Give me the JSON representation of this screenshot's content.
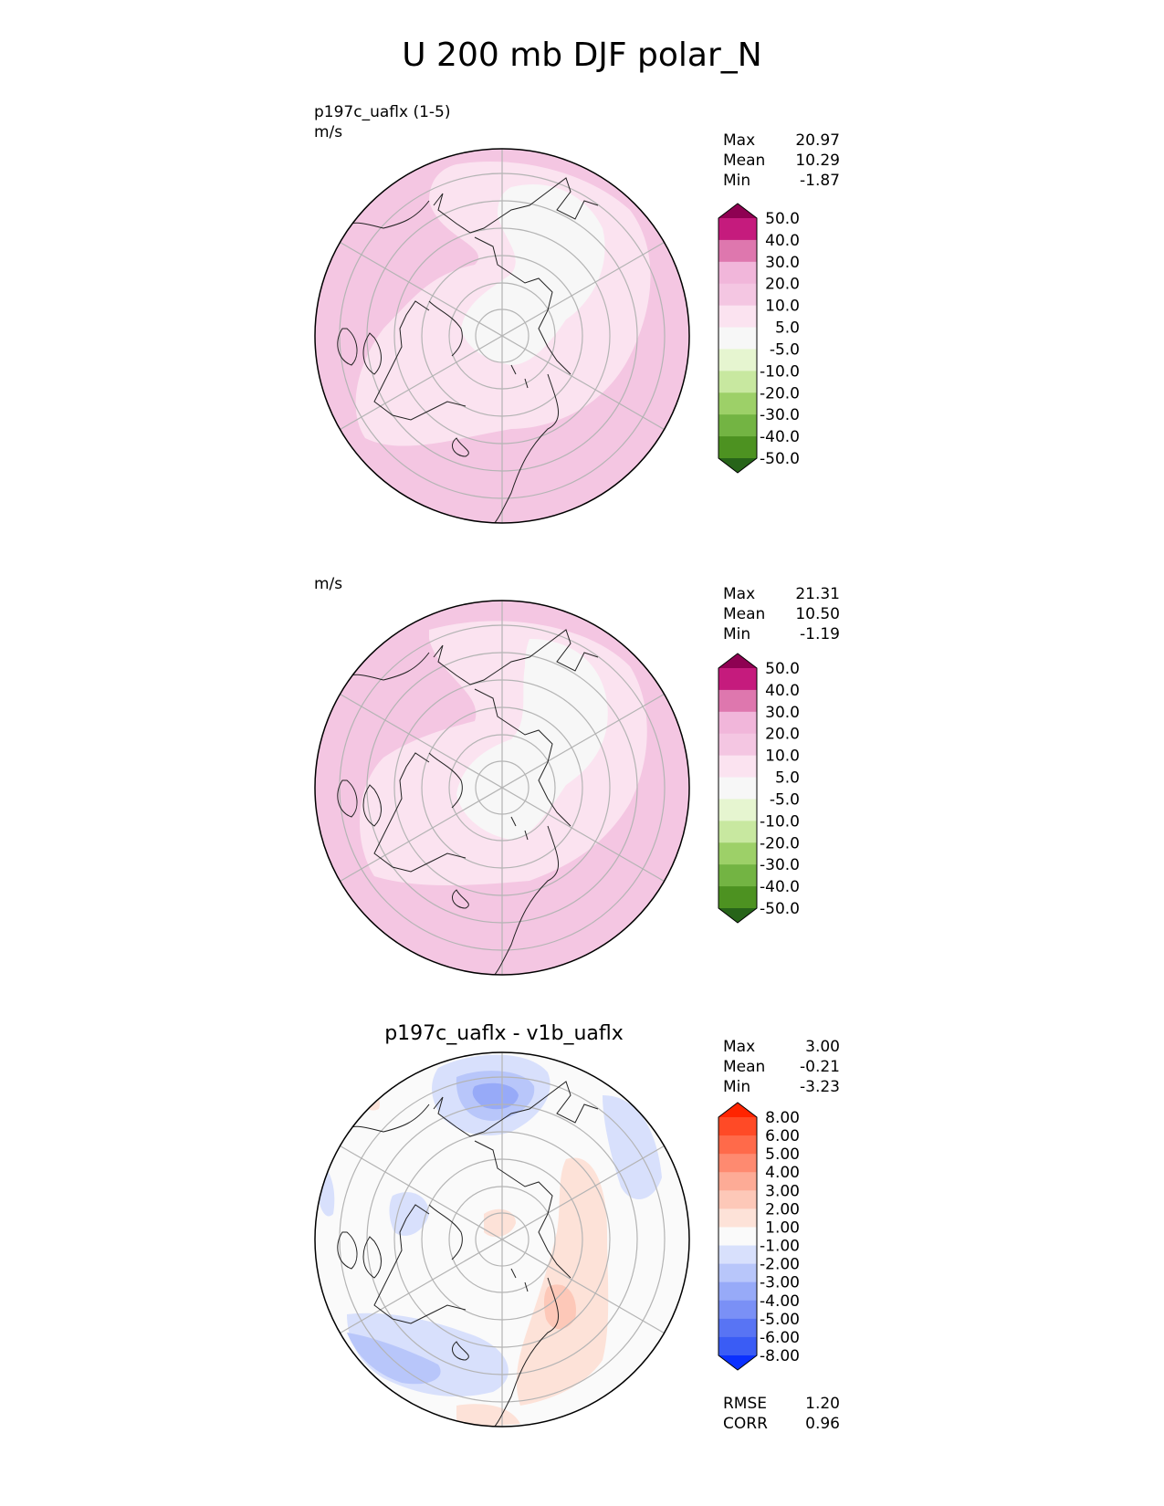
{
  "title": "U 200 mb DJF polar_N",
  "panels": [
    {
      "name": "test",
      "case_label": "p197c_uaflx (1-5)",
      "units": "m/s",
      "title": "",
      "stats": [
        {
          "label": "Max",
          "value": "20.97"
        },
        {
          "label": "Mean",
          "value": "10.29"
        },
        {
          "label": "Min",
          "value": "-1.87"
        }
      ],
      "colorbar": {
        "labels": [
          "50.0",
          "40.0",
          "30.0",
          "20.0",
          "10.0",
          "5.0",
          "-5.0",
          "-10.0",
          "-20.0",
          "-30.0",
          "-40.0",
          "-50.0"
        ],
        "colors": [
          "#8e0152",
          "#c51b7d",
          "#de77ae",
          "#f1b6da",
          "#f4c6e2",
          "#fbe3f0",
          "#f7f7f7",
          "#e6f5d0",
          "#c8e8a0",
          "#9dd068",
          "#73b443",
          "#4d9221",
          "#276419"
        ]
      },
      "extra_stats": []
    },
    {
      "name": "reference",
      "case_label": "",
      "units": "m/s",
      "title": "",
      "stats": [
        {
          "label": "Max",
          "value": "21.31"
        },
        {
          "label": "Mean",
          "value": "10.50"
        },
        {
          "label": "Min",
          "value": "-1.19"
        }
      ],
      "colorbar": {
        "labels": [
          "50.0",
          "40.0",
          "30.0",
          "20.0",
          "10.0",
          "5.0",
          "-5.0",
          "-10.0",
          "-20.0",
          "-30.0",
          "-40.0",
          "-50.0"
        ],
        "colors": [
          "#8e0152",
          "#c51b7d",
          "#de77ae",
          "#f1b6da",
          "#f4c6e2",
          "#fbe3f0",
          "#f7f7f7",
          "#e6f5d0",
          "#c8e8a0",
          "#9dd068",
          "#73b443",
          "#4d9221",
          "#276419"
        ]
      },
      "extra_stats": []
    },
    {
      "name": "difference",
      "case_label": "",
      "units": "",
      "title": "p197c_uaflx - v1b_uaflx",
      "stats": [
        {
          "label": "Max",
          "value": "3.00"
        },
        {
          "label": "Mean",
          "value": "-0.21"
        },
        {
          "label": "Min",
          "value": "-3.23"
        }
      ],
      "colorbar": {
        "labels": [
          "8.00",
          "6.00",
          "5.00",
          "4.00",
          "3.00",
          "2.00",
          "1.00",
          "-1.00",
          "-2.00",
          "-3.00",
          "-4.00",
          "-5.00",
          "-6.00",
          "-8.00"
        ],
        "colors": [
          "#ff2400",
          "#ff4a26",
          "#ff6a4a",
          "#fe8a70",
          "#fdab96",
          "#fdc8b8",
          "#fde2d8",
          "#fafafa",
          "#d8e0fc",
          "#b8c6fa",
          "#97aaf8",
          "#7a90f6",
          "#5874f4",
          "#3a5cf5",
          "#0a30ff"
        ]
      },
      "extra_stats": [
        {
          "label": "RMSE",
          "value": "1.20"
        },
        {
          "label": "CORR",
          "value": "0.96"
        }
      ]
    }
  ],
  "chart_data": {
    "type": "heatmap",
    "projection": "north polar stereographic",
    "variable": "U 200 mb",
    "season": "DJF",
    "panels": [
      {
        "case": "p197c_uaflx (1-5)",
        "units": "m/s",
        "max": 20.97,
        "mean": 10.29,
        "min": -1.87,
        "levels": [
          -50,
          -40,
          -30,
          -20,
          -10,
          -5,
          5,
          10,
          20,
          30,
          40,
          50
        ]
      },
      {
        "units": "m/s",
        "max": 21.31,
        "mean": 10.5,
        "min": -1.19,
        "levels": [
          -50,
          -40,
          -30,
          -20,
          -10,
          -5,
          5,
          10,
          20,
          30,
          40,
          50
        ]
      },
      {
        "title": "p197c_uaflx - v1b_uaflx",
        "max": 3.0,
        "mean": -0.21,
        "min": -3.23,
        "levels": [
          -8,
          -6,
          -5,
          -4,
          -3,
          -2,
          -1,
          1,
          2,
          3,
          4,
          5,
          6,
          8
        ],
        "rmse": 1.2,
        "corr": 0.96
      }
    ],
    "grid": true,
    "coastlines": true
  }
}
